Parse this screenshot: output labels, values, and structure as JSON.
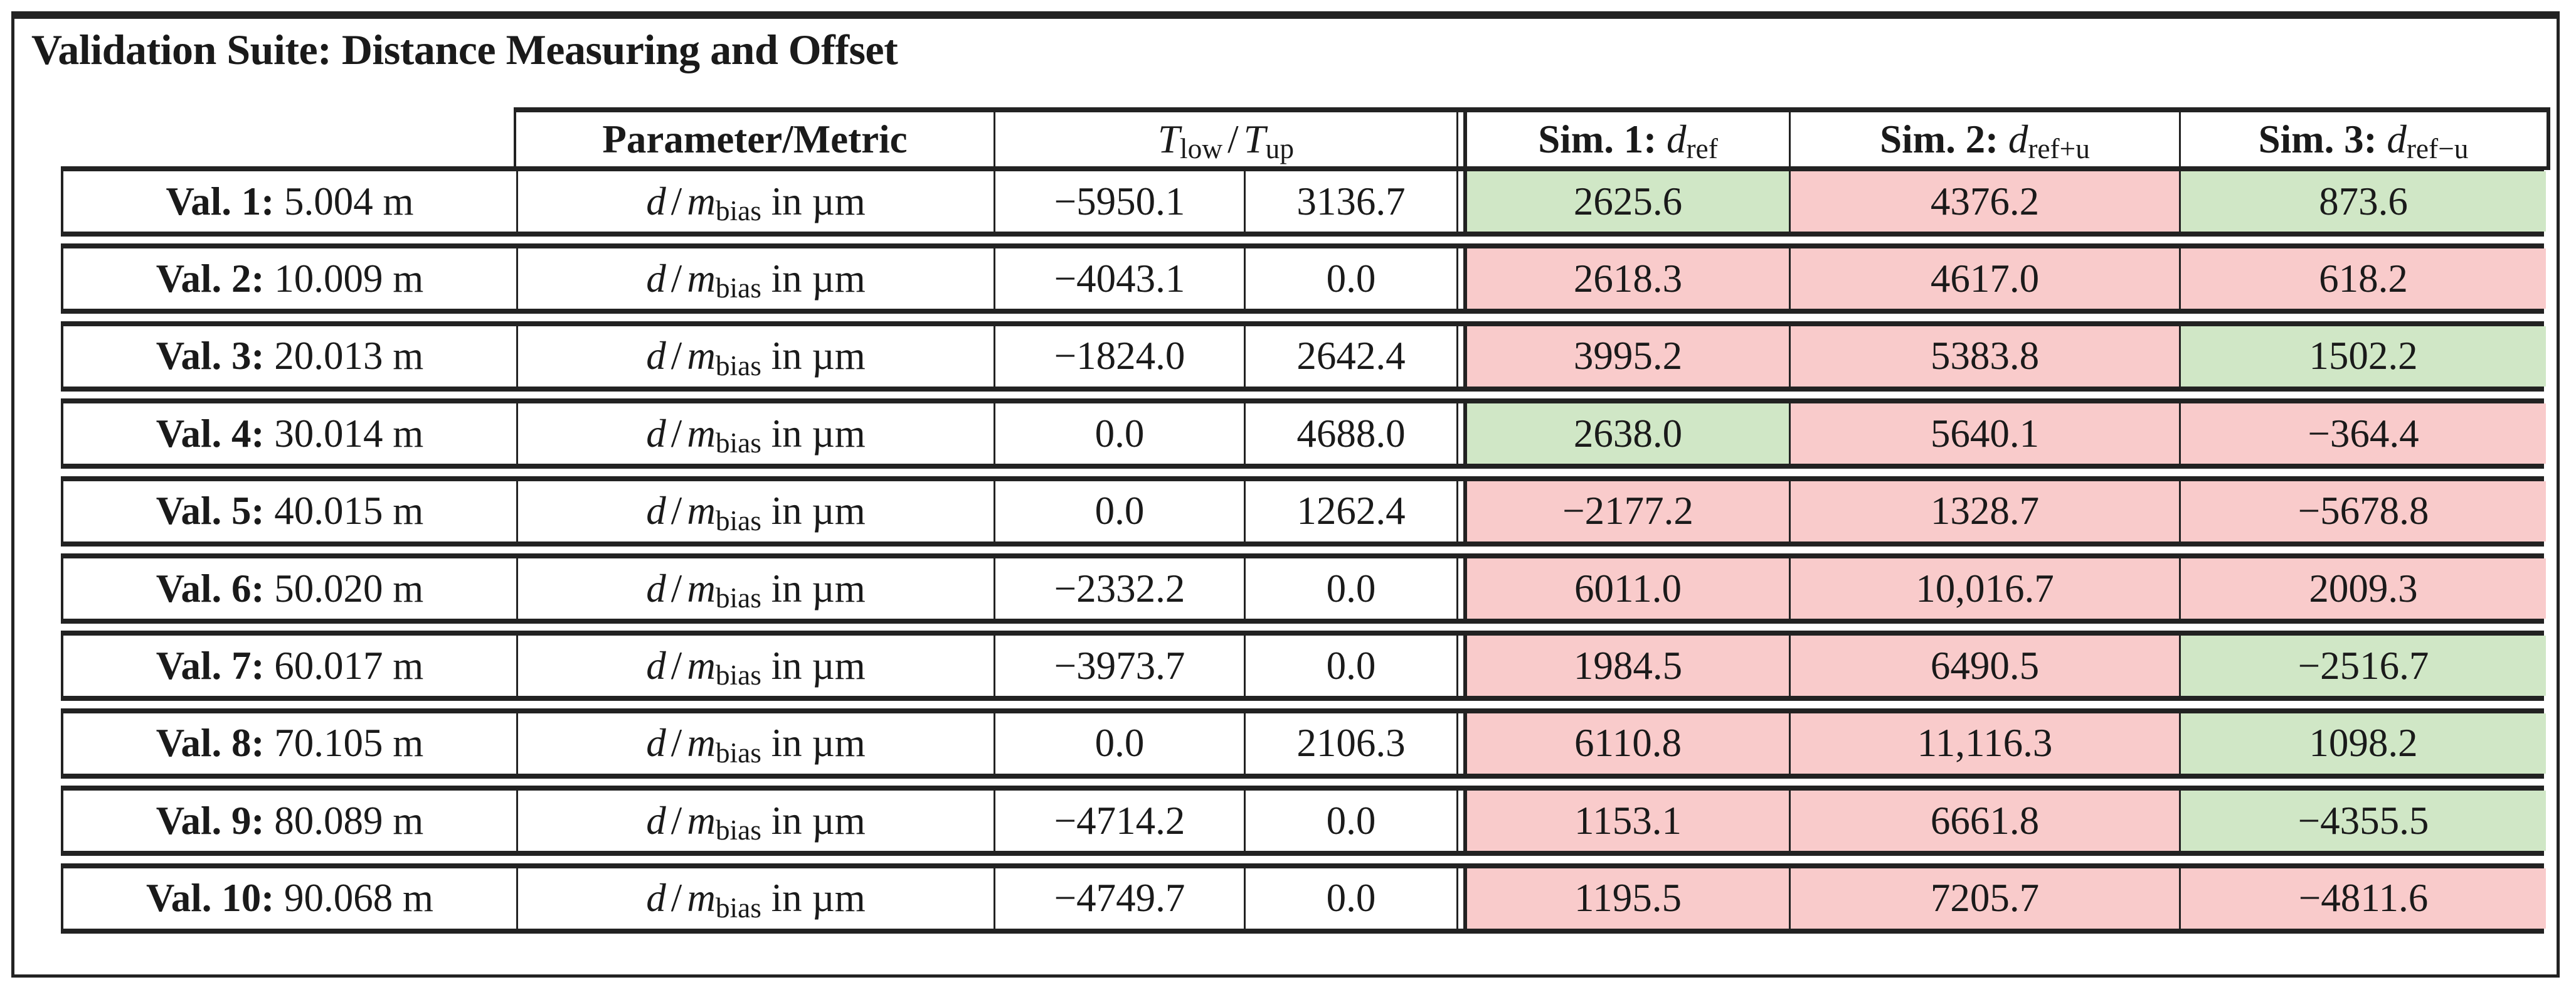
{
  "title": "Validation Suite: Distance Measuring and Offset",
  "header": {
    "metric": "Parameter/Metric",
    "tolerance": {
      "t1": "T",
      "s1": "low",
      "sep": "/",
      "t2": "T",
      "s2": "up"
    },
    "sims": [
      {
        "label": "Sim. 1:",
        "var": "d",
        "sub": "ref"
      },
      {
        "label": "Sim. 2:",
        "var": "d",
        "sub": "ref+u"
      },
      {
        "label": "Sim. 3:",
        "var": "d",
        "sub": "ref−u"
      }
    ]
  },
  "metric": {
    "d": "d",
    "slash": "/",
    "m": "m",
    "sub": "bias",
    "unit": "in µm"
  },
  "colors": {
    "green": "#d0e7c6",
    "red": "#f9cbcb"
  },
  "rows": [
    {
      "label": "Val. 1:",
      "dist": "5.004 m",
      "low": "−5950.1",
      "up": "3136.7",
      "sims": [
        {
          "v": "2625.6",
          "s": "green"
        },
        {
          "v": "4376.2",
          "s": "red"
        },
        {
          "v": "873.6",
          "s": "green"
        }
      ]
    },
    {
      "label": "Val. 2:",
      "dist": "10.009 m",
      "low": "−4043.1",
      "up": "0.0",
      "sims": [
        {
          "v": "2618.3",
          "s": "red"
        },
        {
          "v": "4617.0",
          "s": "red"
        },
        {
          "v": "618.2",
          "s": "red"
        }
      ]
    },
    {
      "label": "Val. 3:",
      "dist": "20.013 m",
      "low": "−1824.0",
      "up": "2642.4",
      "sims": [
        {
          "v": "3995.2",
          "s": "red"
        },
        {
          "v": "5383.8",
          "s": "red"
        },
        {
          "v": "1502.2",
          "s": "green"
        }
      ]
    },
    {
      "label": "Val. 4:",
      "dist": "30.014 m",
      "low": "0.0",
      "up": "4688.0",
      "sims": [
        {
          "v": "2638.0",
          "s": "green"
        },
        {
          "v": "5640.1",
          "s": "red"
        },
        {
          "v": "−364.4",
          "s": "red"
        }
      ]
    },
    {
      "label": "Val. 5:",
      "dist": "40.015 m",
      "low": "0.0",
      "up": "1262.4",
      "sims": [
        {
          "v": "−2177.2",
          "s": "red"
        },
        {
          "v": "1328.7",
          "s": "red"
        },
        {
          "v": "−5678.8",
          "s": "red"
        }
      ]
    },
    {
      "label": "Val. 6:",
      "dist": "50.020 m",
      "low": "−2332.2",
      "up": "0.0",
      "sims": [
        {
          "v": "6011.0",
          "s": "red"
        },
        {
          "v": "10,016.7",
          "s": "red"
        },
        {
          "v": "2009.3",
          "s": "red"
        }
      ]
    },
    {
      "label": "Val. 7:",
      "dist": "60.017 m",
      "low": "−3973.7",
      "up": "0.0",
      "sims": [
        {
          "v": "1984.5",
          "s": "red"
        },
        {
          "v": "6490.5",
          "s": "red"
        },
        {
          "v": "−2516.7",
          "s": "green"
        }
      ]
    },
    {
      "label": "Val. 8:",
      "dist": "70.105 m",
      "low": "0.0",
      "up": "2106.3",
      "sims": [
        {
          "v": "6110.8",
          "s": "red"
        },
        {
          "v": "11,116.3",
          "s": "red"
        },
        {
          "v": "1098.2",
          "s": "green"
        }
      ]
    },
    {
      "label": "Val. 9:",
      "dist": "80.089 m",
      "low": "−4714.2",
      "up": "0.0",
      "sims": [
        {
          "v": "1153.1",
          "s": "red"
        },
        {
          "v": "6661.8",
          "s": "red"
        },
        {
          "v": "−4355.5",
          "s": "green"
        }
      ]
    },
    {
      "label": "Val. 10:",
      "dist": "90.068 m",
      "low": "−4749.7",
      "up": "0.0",
      "sims": [
        {
          "v": "1195.5",
          "s": "red"
        },
        {
          "v": "7205.7",
          "s": "red"
        },
        {
          "v": "−4811.6",
          "s": "red"
        }
      ]
    }
  ]
}
